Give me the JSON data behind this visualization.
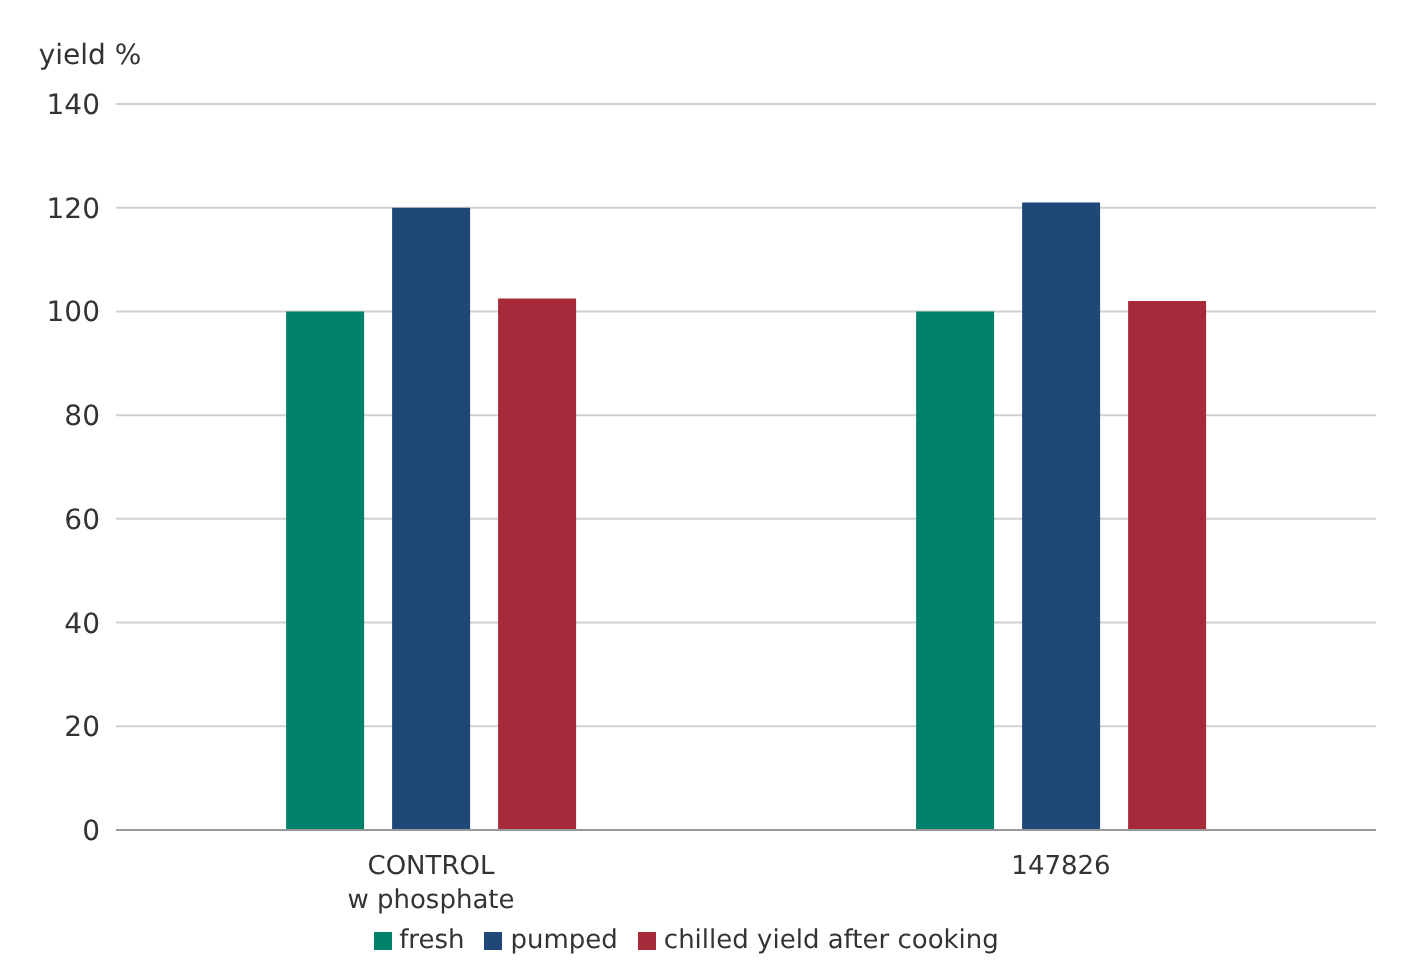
{
  "chart_data": {
    "type": "bar",
    "ylabel": "yield %",
    "categories": [
      "CONTROL\nw phosphate",
      "147826"
    ],
    "series": [
      {
        "name": "fresh",
        "color": "#00826a",
        "values": [
          100,
          100
        ]
      },
      {
        "name": "pumped",
        "color": "#1f4778",
        "values": [
          120,
          121
        ]
      },
      {
        "name": "chilled yield after cooking",
        "color": "#a72a3a",
        "values": [
          102.5,
          102
        ]
      }
    ],
    "ylim": [
      0,
      140
    ],
    "yticks": [
      0,
      20,
      40,
      60,
      80,
      100,
      120,
      140
    ],
    "grid": "y",
    "legend": "bottom"
  }
}
